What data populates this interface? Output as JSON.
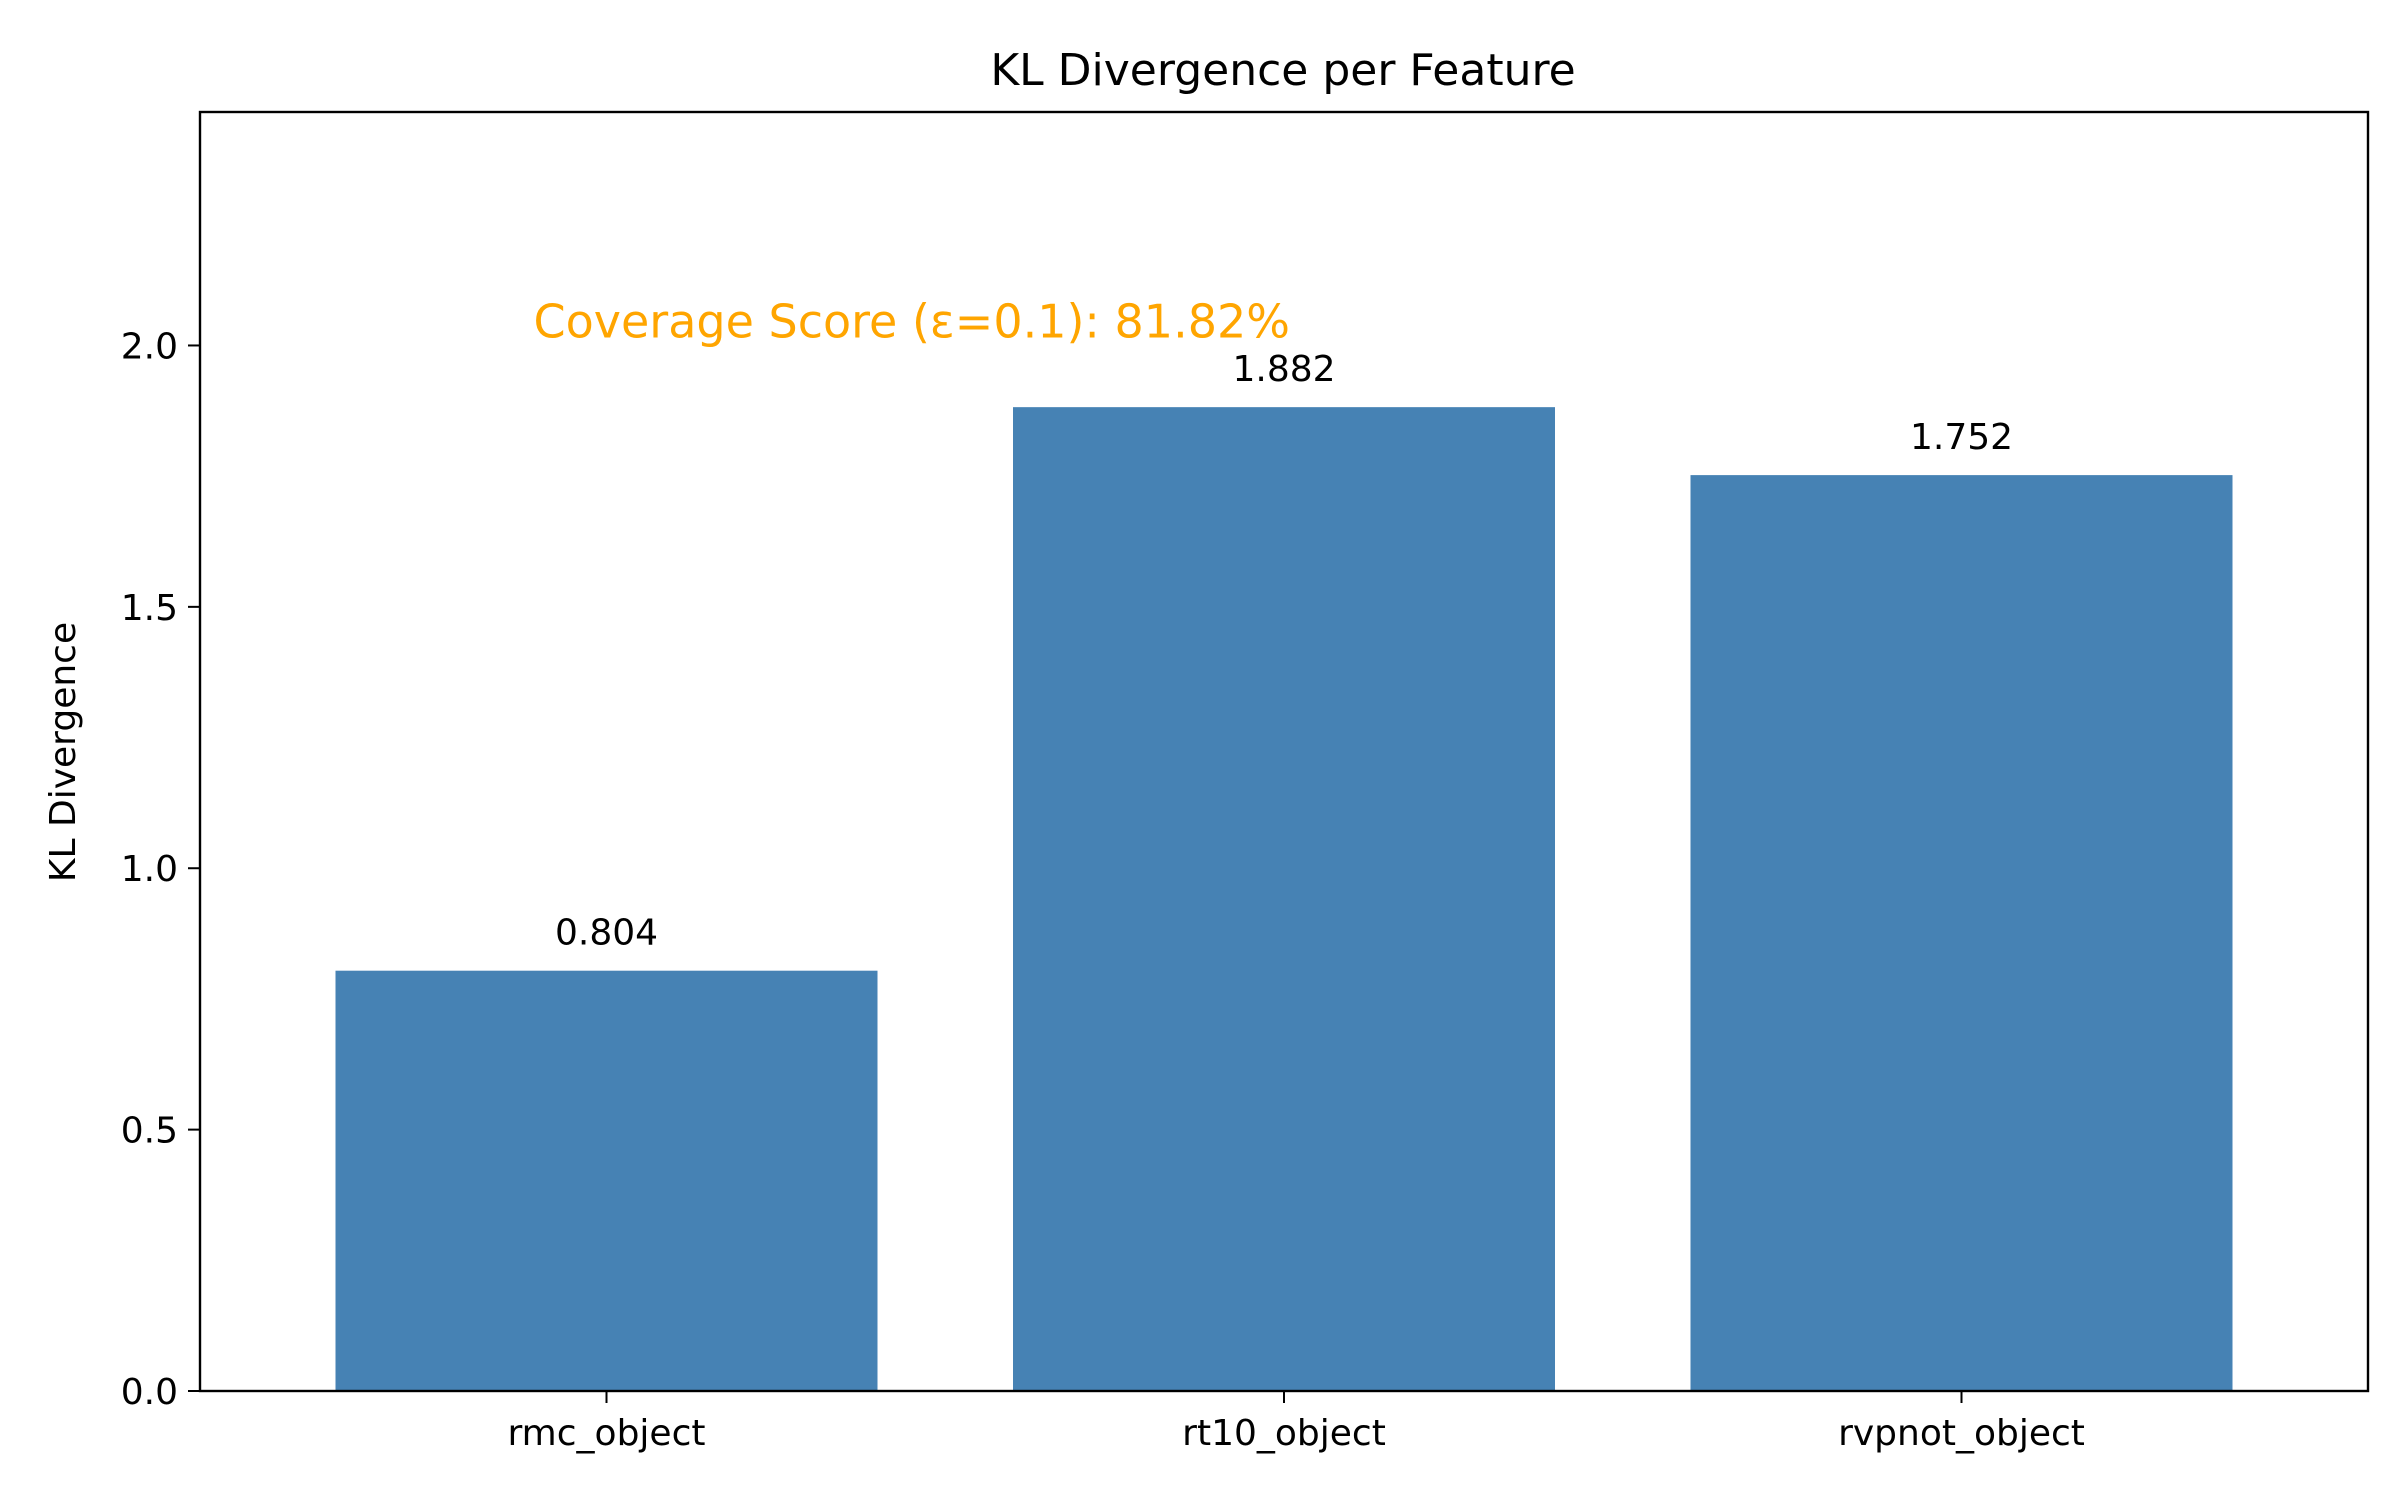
{
  "chart_data": {
    "type": "bar",
    "title": "KL Divergence per Feature",
    "xlabel": "",
    "ylabel": "KL Divergence",
    "categories": [
      "rmc_object",
      "rt10_object",
      "rvpnot_object"
    ],
    "values": [
      0.804,
      1.882,
      1.752
    ],
    "data_labels": [
      "0.804",
      "1.882",
      "1.752"
    ],
    "ylim": [
      0,
      2.4466
    ],
    "yticks": [
      0.0,
      0.5,
      1.0,
      1.5,
      2.0
    ],
    "ytick_labels": [
      "0.0",
      "0.5",
      "1.0",
      "1.5",
      "2.0"
    ],
    "grid": false,
    "legend": "none",
    "bar_color": "#4682b4",
    "annotation": {
      "text": "Coverage Score (ε=0.1): 81.82%",
      "color": "#ffa500",
      "x_category_index": 0,
      "y": 2.05
    }
  }
}
